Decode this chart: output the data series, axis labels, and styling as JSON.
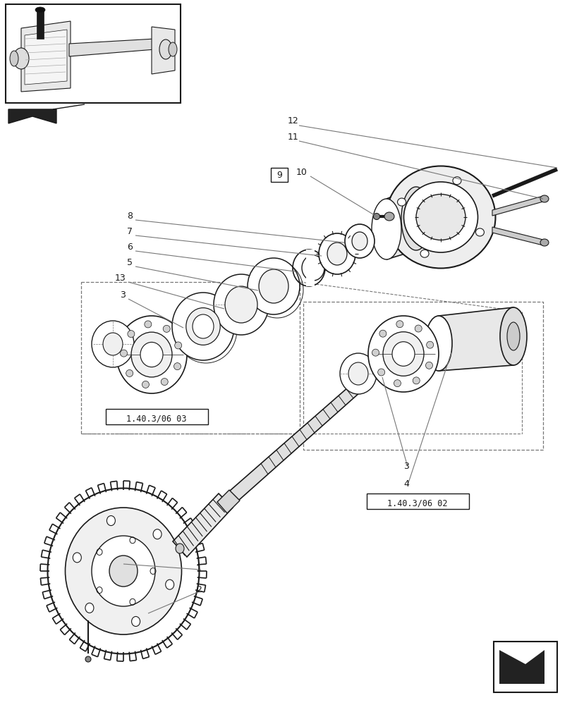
{
  "bg_color": "#ffffff",
  "line_color": "#1a1a1a",
  "gray_color": "#777777",
  "fig_width": 8.12,
  "fig_height": 10.0,
  "dpi": 100,
  "ref_box1_text": "1.40.3/06 03",
  "ref_box2_text": "1.40.3/06 02"
}
